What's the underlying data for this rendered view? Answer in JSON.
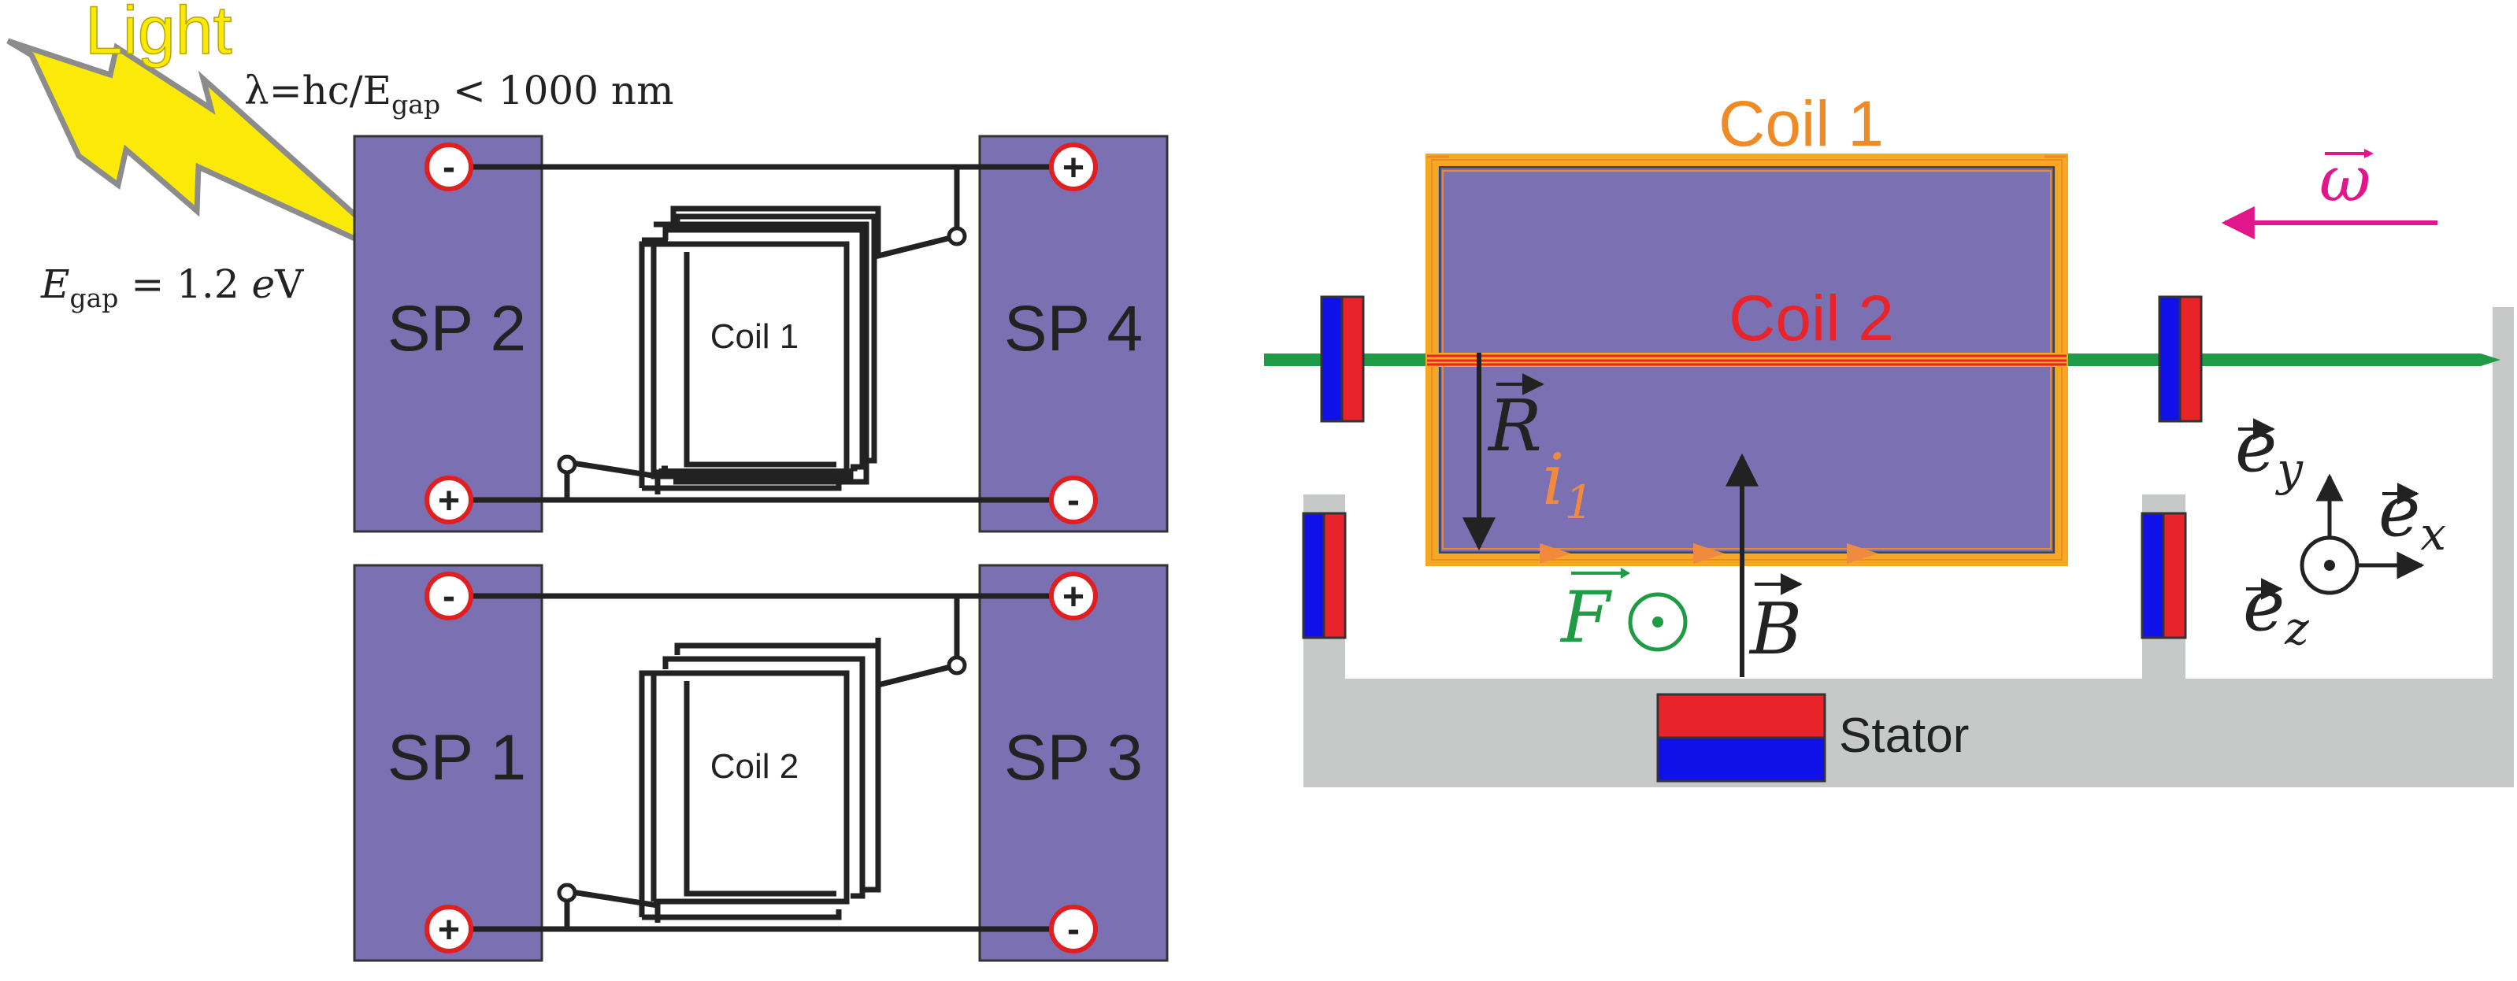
{
  "light": {
    "title": "Light",
    "lambda_prefix": "λ=hc/E",
    "lambda_sub": "gap",
    "lambda_suffix": " < 1000 nm",
    "egap_symbol": "E",
    "egap_sub": "gap",
    "egap_value": " = 1.2 ",
    "egap_unit_italic": "e",
    "egap_unit_rest": "V"
  },
  "panels": {
    "sp1": "SP 1",
    "sp2": "SP 2",
    "sp3": "SP 3",
    "sp4": "SP 4"
  },
  "circuit_coils": {
    "upper": "Coil 1",
    "lower": "Coil 2"
  },
  "terminals": {
    "minus": "-",
    "plus": "+"
  },
  "motor": {
    "coil1": "Coil 1",
    "coil2": "Coil 2",
    "stator": "Stator",
    "omega": "ω",
    "radius": "R",
    "current": "i",
    "current_sub": "1",
    "force": "F",
    "field": "B",
    "dot": "⊙",
    "ex": "e",
    "ex_sub": "x",
    "ey": "e",
    "ey_sub": "y",
    "ez": "e",
    "ez_sub": "z"
  },
  "colors": {
    "panel": "#7b70b1",
    "wire": "#222222",
    "terminal_ring": "#e02020",
    "light_bolt": "#fbea07",
    "coil1": "#f7a823",
    "coil1_text": "#f08a24",
    "coil2": "#e8242a",
    "coil2_text": "#e8242a",
    "axle": "#1f9a45",
    "magnet_red": "#e8242a",
    "magnet_blue": "#1010e8",
    "stator_gray": "#c7c8c8",
    "omega": "#e0168a",
    "current": "#f08a3e"
  }
}
